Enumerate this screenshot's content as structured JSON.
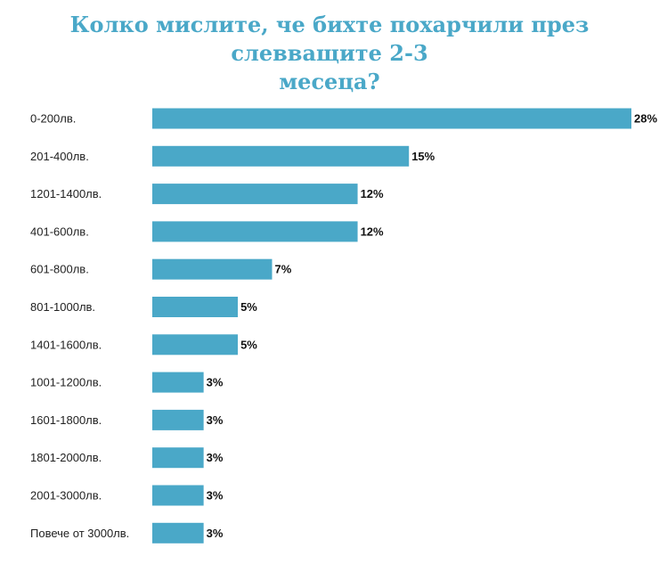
{
  "title_line1": "Колко мислите, че бихте похарчили през слевващите 2-3",
  "title_line2": "месеца?",
  "colors": {
    "bar": "#4aa8c8",
    "title": "#4aa8c8"
  },
  "chart_data": {
    "type": "bar",
    "orientation": "horizontal",
    "title": "Колко мислите, че бихте похарчили през слевващите 2-3 месеца?",
    "xlabel": "",
    "ylabel": "",
    "categories": [
      "0-200лв.",
      "201-400лв.",
      "1201-1400лв.",
      "401-600лв.",
      "601-800лв.",
      "801-1000лв.",
      "1401-1600лв.",
      "1001-1200лв.",
      "1601-1800лв.",
      "1801-2000лв.",
      "2001-3000лв.",
      "Повече от 3000лв."
    ],
    "values": [
      28,
      15,
      12,
      12,
      7,
      5,
      5,
      3,
      3,
      3,
      3,
      3
    ],
    "value_labels": [
      "28%",
      "15%",
      "12%",
      "12%",
      "7%",
      "5%",
      "5%",
      "3%",
      "3%",
      "3%",
      "3%",
      "3%"
    ],
    "xlim": [
      0,
      28
    ],
    "grid": false,
    "legend": "none"
  }
}
